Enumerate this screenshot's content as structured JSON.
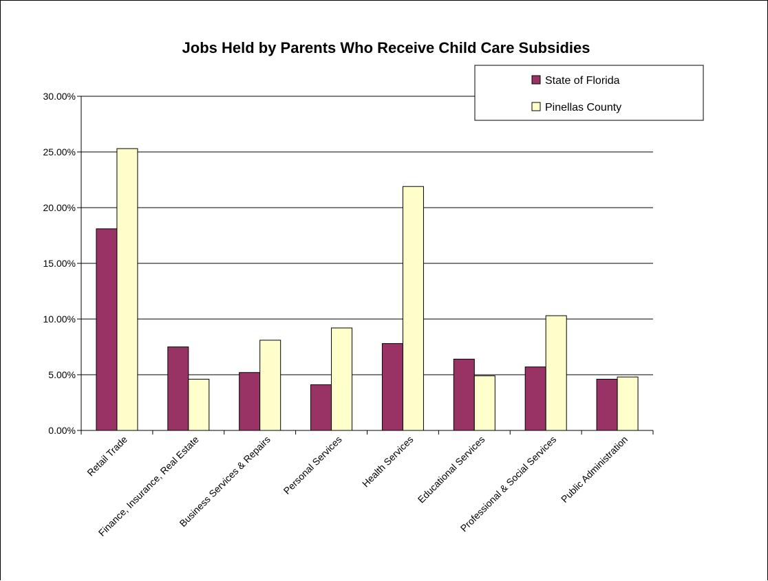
{
  "chart_data": {
    "type": "bar",
    "title": "Jobs Held by Parents Who Receive Child Care Subsidies",
    "xlabel": "",
    "ylabel": "",
    "categories": [
      "Retail Trade",
      "Finance, Insurance, Real Estate",
      "Business Services & Repairs",
      "Personal Services",
      "Health Services",
      "Educational Services",
      "Professional & Social Services",
      "Public Administration"
    ],
    "series": [
      {
        "name": "State of Florida",
        "color": "#993366",
        "values": [
          0.181,
          0.075,
          0.052,
          0.041,
          0.078,
          0.064,
          0.057,
          0.046
        ]
      },
      {
        "name": "Pinellas County",
        "color": "#ffffcc",
        "values": [
          0.253,
          0.046,
          0.081,
          0.092,
          0.219,
          0.049,
          0.103,
          0.048
        ]
      }
    ],
    "ylim": [
      0,
      0.3
    ],
    "yticks": [
      "0.00%",
      "5.00%",
      "10.00%",
      "15.00%",
      "20.00%",
      "25.00%",
      "30.00%"
    ],
    "grid": true,
    "legend": "top-right"
  }
}
